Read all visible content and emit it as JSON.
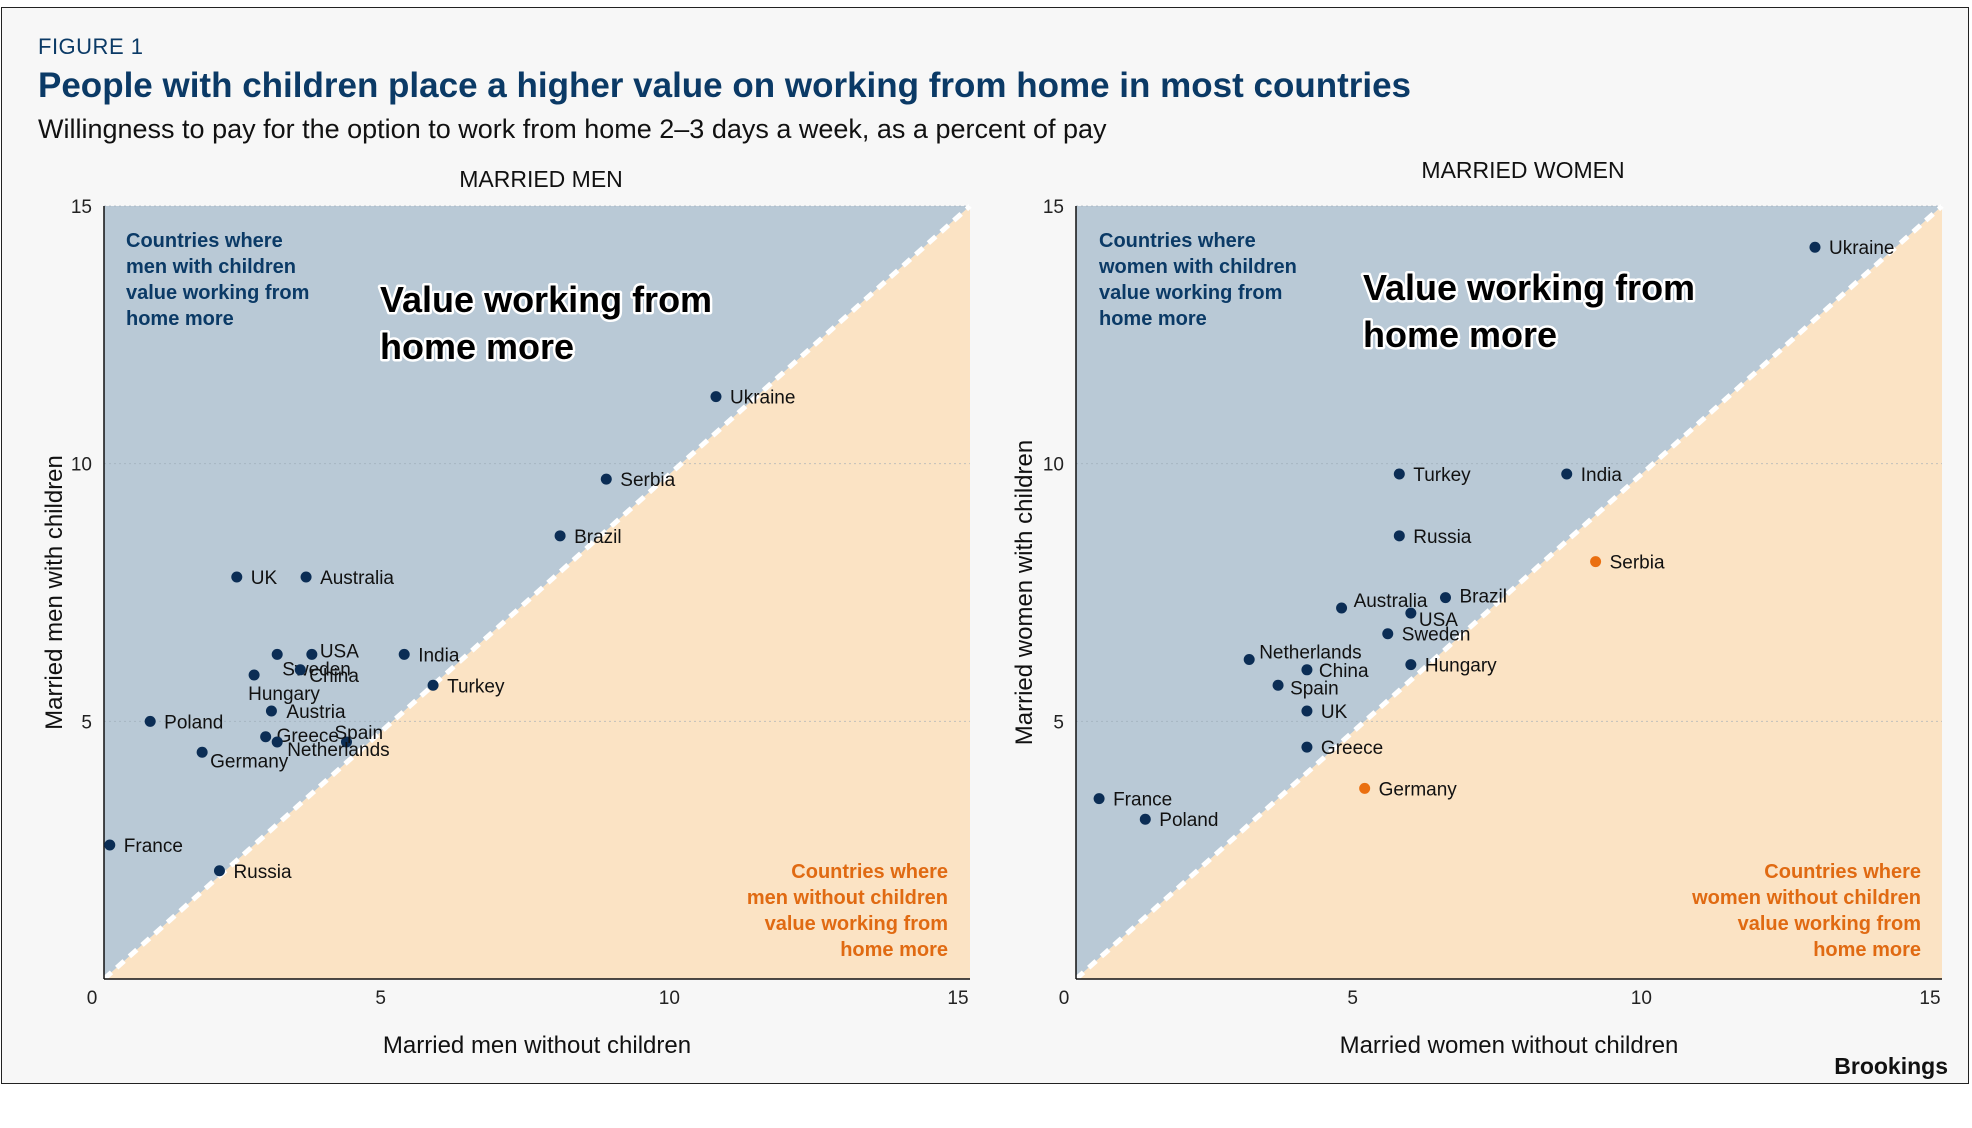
{
  "figure_label": "FIGURE 1",
  "title": "People with children place a higher value on working from home in most countries",
  "subtitle": "Willingness to pay for the option to work from home 2–3 days a week, as a percent of pay",
  "source": "Brookings",
  "colors": {
    "upper_region": "#b9c9d6",
    "lower_region": "#fbe3c4",
    "blue_point": "#0b2d55",
    "orange_point": "#ea6f10",
    "blue_text": "#0b3a66",
    "orange_text": "#e06a12"
  },
  "chart_data": [
    {
      "type": "scatter",
      "title": "MARRIED MEN",
      "xlabel": "Married men without children",
      "ylabel": "Married men with children",
      "xlim": [
        0,
        15
      ],
      "ylim": [
        0,
        15
      ],
      "xticks": [
        "0",
        "5",
        "10",
        "15"
      ],
      "yticks": [
        "5",
        "10",
        "15"
      ],
      "diagonal": "y = x",
      "big_annotation": [
        "Value working from",
        "home more"
      ],
      "upper_annotation": [
        "Countries where",
        "men with children",
        "value working from",
        "home more"
      ],
      "lower_annotation": [
        "Countries where",
        "men without children",
        "value working from",
        "home more"
      ],
      "points": [
        {
          "label": "Ukraine",
          "x": 10.6,
          "y": 11.3,
          "group": "upper"
        },
        {
          "label": "Serbia",
          "x": 8.7,
          "y": 9.7,
          "group": "upper"
        },
        {
          "label": "Brazil",
          "x": 7.9,
          "y": 8.6,
          "group": "upper"
        },
        {
          "label": "UK",
          "x": 2.3,
          "y": 7.8,
          "group": "upper"
        },
        {
          "label": "Australia",
          "x": 3.5,
          "y": 7.8,
          "group": "upper"
        },
        {
          "label": "India",
          "x": 5.2,
          "y": 6.3,
          "group": "upper"
        },
        {
          "label": "USA",
          "x": 3.6,
          "y": 6.3,
          "group": "upper"
        },
        {
          "label": "Sweden",
          "x": 3.0,
          "y": 6.3,
          "group": "upper"
        },
        {
          "label": "China",
          "x": 3.4,
          "y": 6.0,
          "group": "upper"
        },
        {
          "label": "Hungary",
          "x": 2.6,
          "y": 5.9,
          "group": "upper"
        },
        {
          "label": "Turkey",
          "x": 5.7,
          "y": 5.7,
          "group": "upper"
        },
        {
          "label": "Austria",
          "x": 2.9,
          "y": 5.2,
          "group": "upper"
        },
        {
          "label": "Poland",
          "x": 0.8,
          "y": 5.0,
          "group": "upper"
        },
        {
          "label": "Greece",
          "x": 2.8,
          "y": 4.7,
          "group": "upper"
        },
        {
          "label": "Spain",
          "x": 4.2,
          "y": 4.6,
          "group": "upper"
        },
        {
          "label": "Netherlands",
          "x": 3.0,
          "y": 4.6,
          "group": "upper"
        },
        {
          "label": "Germany",
          "x": 1.7,
          "y": 4.4,
          "group": "upper"
        },
        {
          "label": "France",
          "x": 0.1,
          "y": 2.6,
          "group": "upper"
        },
        {
          "label": "Russia",
          "x": 2.0,
          "y": 2.1,
          "group": "upper"
        }
      ]
    },
    {
      "type": "scatter",
      "title": "MARRIED WOMEN",
      "xlabel": "Married women without children",
      "ylabel": "Married women with children",
      "xlim": [
        0,
        15
      ],
      "ylim": [
        0,
        15
      ],
      "xticks": [
        "0",
        "5",
        "10",
        "15"
      ],
      "yticks": [
        "5",
        "10",
        "15"
      ],
      "diagonal": "y = x",
      "big_annotation": [
        "Value working from",
        "home more"
      ],
      "upper_annotation": [
        "Countries where",
        "women with children",
        "value working from",
        "home more"
      ],
      "lower_annotation": [
        "Countries where",
        "women without children",
        "value working from",
        "home more"
      ],
      "points": [
        {
          "label": "Ukraine",
          "x": 12.8,
          "y": 14.2,
          "group": "upper"
        },
        {
          "label": "Turkey",
          "x": 5.6,
          "y": 9.8,
          "group": "upper"
        },
        {
          "label": "India",
          "x": 8.5,
          "y": 9.8,
          "group": "upper"
        },
        {
          "label": "Russia",
          "x": 5.6,
          "y": 8.6,
          "group": "upper"
        },
        {
          "label": "Serbia",
          "x": 9.0,
          "y": 8.1,
          "group": "lower"
        },
        {
          "label": "Australia",
          "x": 4.6,
          "y": 7.2,
          "group": "upper"
        },
        {
          "label": "Brazil",
          "x": 6.4,
          "y": 7.4,
          "group": "upper"
        },
        {
          "label": "USA",
          "x": 5.8,
          "y": 7.1,
          "group": "upper"
        },
        {
          "label": "Sweden",
          "x": 5.4,
          "y": 6.7,
          "group": "upper"
        },
        {
          "label": "Netherlands",
          "x": 3.0,
          "y": 6.2,
          "group": "upper"
        },
        {
          "label": "China",
          "x": 4.0,
          "y": 6.0,
          "group": "upper"
        },
        {
          "label": "Hungary",
          "x": 5.8,
          "y": 6.1,
          "group": "upper"
        },
        {
          "label": "Spain",
          "x": 3.5,
          "y": 5.7,
          "group": "upper"
        },
        {
          "label": "UK",
          "x": 4.0,
          "y": 5.2,
          "group": "upper"
        },
        {
          "label": "Greece",
          "x": 4.0,
          "y": 4.5,
          "group": "upper"
        },
        {
          "label": "Germany",
          "x": 5.0,
          "y": 3.7,
          "group": "lower"
        },
        {
          "label": "France",
          "x": 0.4,
          "y": 3.5,
          "group": "upper"
        },
        {
          "label": "Poland",
          "x": 1.2,
          "y": 3.1,
          "group": "upper"
        }
      ]
    }
  ]
}
